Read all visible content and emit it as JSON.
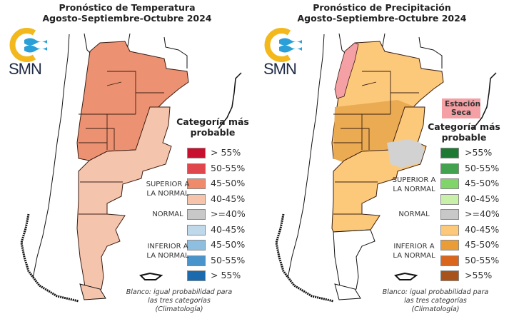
{
  "temperature": {
    "title_line1": "Pronóstico de Temperatura",
    "title_line2": "Agosto-Septiembre-Octubre 2024",
    "logo_text": "SMN",
    "legend": {
      "title_line1": "Categoría más",
      "title_line2": "probable",
      "superior_label_1": "SUPERIOR A",
      "superior_label_2": "LA NORMAL",
      "normal_label": "NORMAL",
      "inferior_label_1": "INFERIOR A",
      "inferior_label_2": "LA NORMAL",
      "items": [
        {
          "label": "> 55%",
          "color": "#c8102e"
        },
        {
          "label": "50-55%",
          "color": "#e0474c"
        },
        {
          "label": "45-50%",
          "color": "#ef8a6a"
        },
        {
          "label": "40-45%",
          "color": "#f7c3aa"
        },
        {
          "label": ">=40%",
          "color": "#c8c8c8"
        },
        {
          "label": "40-45%",
          "color": "#bfd8ea"
        },
        {
          "label": "45-50%",
          "color": "#8fbfe0"
        },
        {
          "label": "50-55%",
          "color": "#4a94cc"
        },
        {
          "label": "> 55%",
          "color": "#1a6aad"
        }
      ]
    },
    "note_line1": "Blanco: igual probabilidad para",
    "note_line2": "las tres categorías (Climatología)",
    "region_colors": {
      "north": "#ec9272",
      "south": "#f5c4ad"
    }
  },
  "precipitation": {
    "title_line1": "Pronóstico de Precipitación",
    "title_line2": "Agosto-Septiembre-Octubre 2024",
    "logo_text": "SMN",
    "dry_season_line1": "Estación",
    "dry_season_line2": "Seca",
    "legend": {
      "title_line1": "Categoría más",
      "title_line2": "probable",
      "superior_label_1": "SUPERIOR A",
      "superior_label_2": "LA NORMAL",
      "normal_label": "NORMAL",
      "inferior_label_1": "INFERIOR A",
      "inferior_label_2": "LA NORMAL",
      "items": [
        {
          "label": ">55%",
          "color": "#1e7a32"
        },
        {
          "label": "50-55%",
          "color": "#43a24d"
        },
        {
          "label": "45-50%",
          "color": "#7fd46a"
        },
        {
          "label": "40-45%",
          "color": "#c9f0a8"
        },
        {
          "label": ">=40%",
          "color": "#c8c8c8"
        },
        {
          "label": "40-45%",
          "color": "#fcc97a"
        },
        {
          "label": "45-50%",
          "color": "#ea9c36"
        },
        {
          "label": "50-55%",
          "color": "#d9661c"
        },
        {
          "label": ">55%",
          "color": "#a8521c"
        }
      ]
    },
    "note_line1": "Blanco: igual probabilidad para",
    "note_line2": "las tres categorías (Climatología)",
    "region_colors": {
      "dry": "#f4a0a4",
      "light": "#fcc97a",
      "mid": "#ebab52",
      "gray": "#d2d2d2"
    }
  }
}
